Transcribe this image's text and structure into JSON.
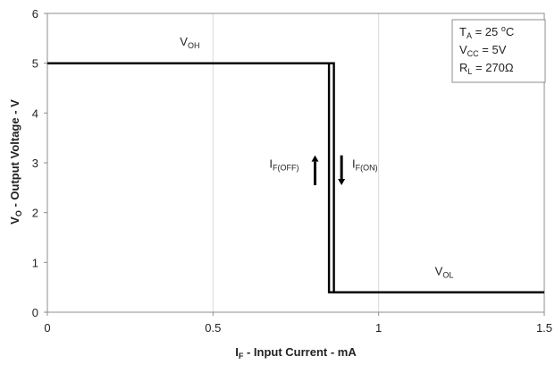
{
  "chart_data": {
    "type": "line",
    "title": "",
    "xlabel": {
      "main": "I",
      "sub": "F",
      "rest": " - Input Current - mA"
    },
    "ylabel": {
      "main": "V",
      "sub": "O",
      "rest": " - Output Voltage - V"
    },
    "xlim": [
      0,
      1.5
    ],
    "ylim": [
      0,
      6
    ],
    "x_ticks": [
      0,
      0.5,
      1,
      1.5
    ],
    "x_tick_labels": [
      "0",
      "0.5",
      "1",
      "1.5"
    ],
    "y_ticks": [
      0,
      1,
      2,
      3,
      4,
      5,
      6
    ],
    "y_tick_labels": [
      "0",
      "1",
      "2",
      "3",
      "4",
      "5",
      "6"
    ],
    "grid": {
      "vertical": true,
      "horizontal": false
    },
    "series": [
      {
        "id": "rising",
        "x": [
          0,
          0.865,
          0.865,
          1.5
        ],
        "y": [
          5,
          5,
          0.4,
          0.4
        ]
      },
      {
        "id": "falling",
        "x": [
          0,
          0.85,
          0.85,
          1.5
        ],
        "y": [
          5,
          5,
          0.4,
          0.4
        ]
      }
    ],
    "annotations": [
      {
        "id": "voh",
        "main": "V",
        "sub": "OH",
        "x": 0.4,
        "y": 5.35
      },
      {
        "id": "vol",
        "main": "V",
        "sub": "OL",
        "x": 1.17,
        "y": 0.75
      },
      {
        "id": "if-off",
        "main": "I",
        "sub": "F(OFF)",
        "x": 0.67,
        "y": 2.9
      },
      {
        "id": "if-on",
        "main": "I",
        "sub": "F(ON)",
        "x": 0.92,
        "y": 2.9
      }
    ],
    "arrows": [
      {
        "id": "up-arrow",
        "direction": "up",
        "x": 0.808,
        "y_from": 2.55,
        "y_to": 3.15
      },
      {
        "id": "down-arrow",
        "direction": "down",
        "x": 0.888,
        "y_from": 3.15,
        "y_to": 2.55
      }
    ],
    "conditions_box": {
      "location": "top-right",
      "lines": [
        {
          "main": "T",
          "sub": "A",
          "rest": " = 25 ",
          "sup": "o",
          "rest2": "C"
        },
        {
          "main": "V",
          "sub": "CC",
          "rest": " = 5V",
          "sup": "",
          "rest2": ""
        },
        {
          "main": "R",
          "sub": "L",
          "rest": " = 270Ω",
          "sup": "",
          "rest2": ""
        }
      ]
    }
  }
}
